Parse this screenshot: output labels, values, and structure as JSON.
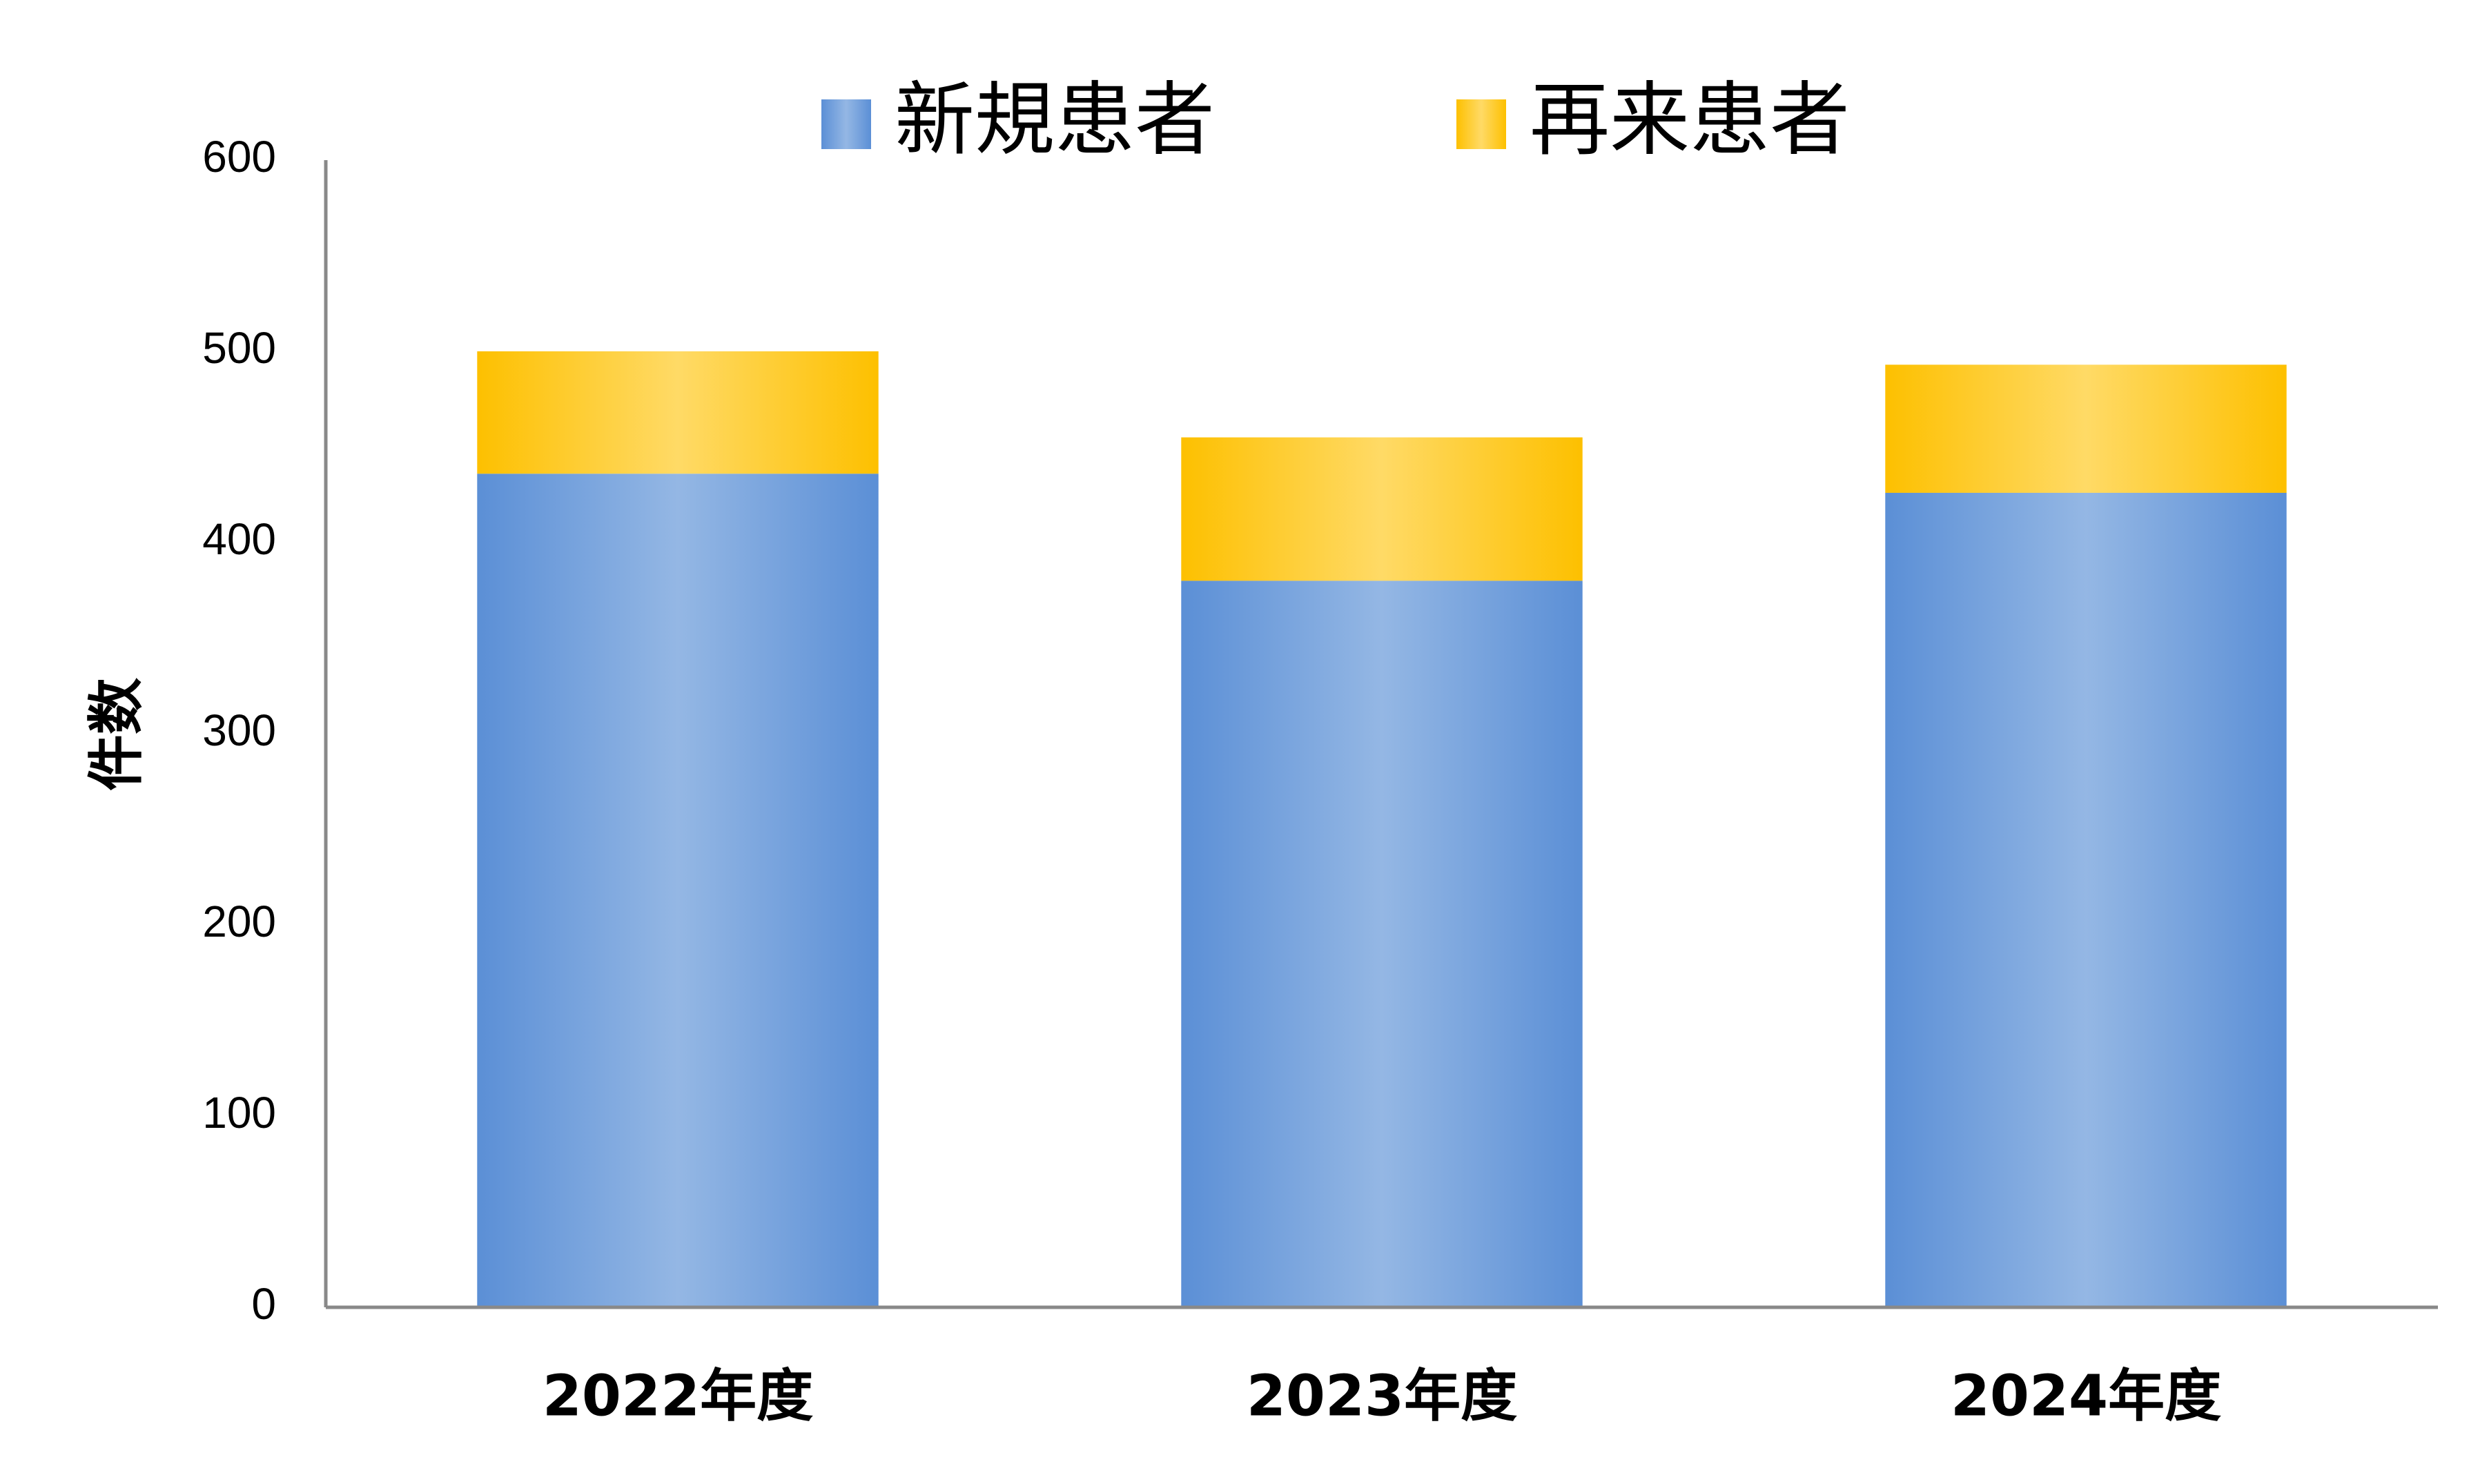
{
  "chart_data": {
    "type": "stacked_bar",
    "y_label": "件数",
    "categories": [
      "2022年度",
      "2023年度",
      "2024年度"
    ],
    "series": [
      {
        "name": "新規患者",
        "color": "#5b8fd6",
        "values": [
          436,
          380,
          426
        ]
      },
      {
        "name": "再来患者",
        "color": "#fdc000",
        "values": [
          64,
          75,
          67
        ]
      }
    ],
    "ylim": [
      0,
      600
    ],
    "yticks": [
      0,
      100,
      200,
      300,
      400,
      500,
      600
    ],
    "grid": false,
    "legend": "top"
  }
}
